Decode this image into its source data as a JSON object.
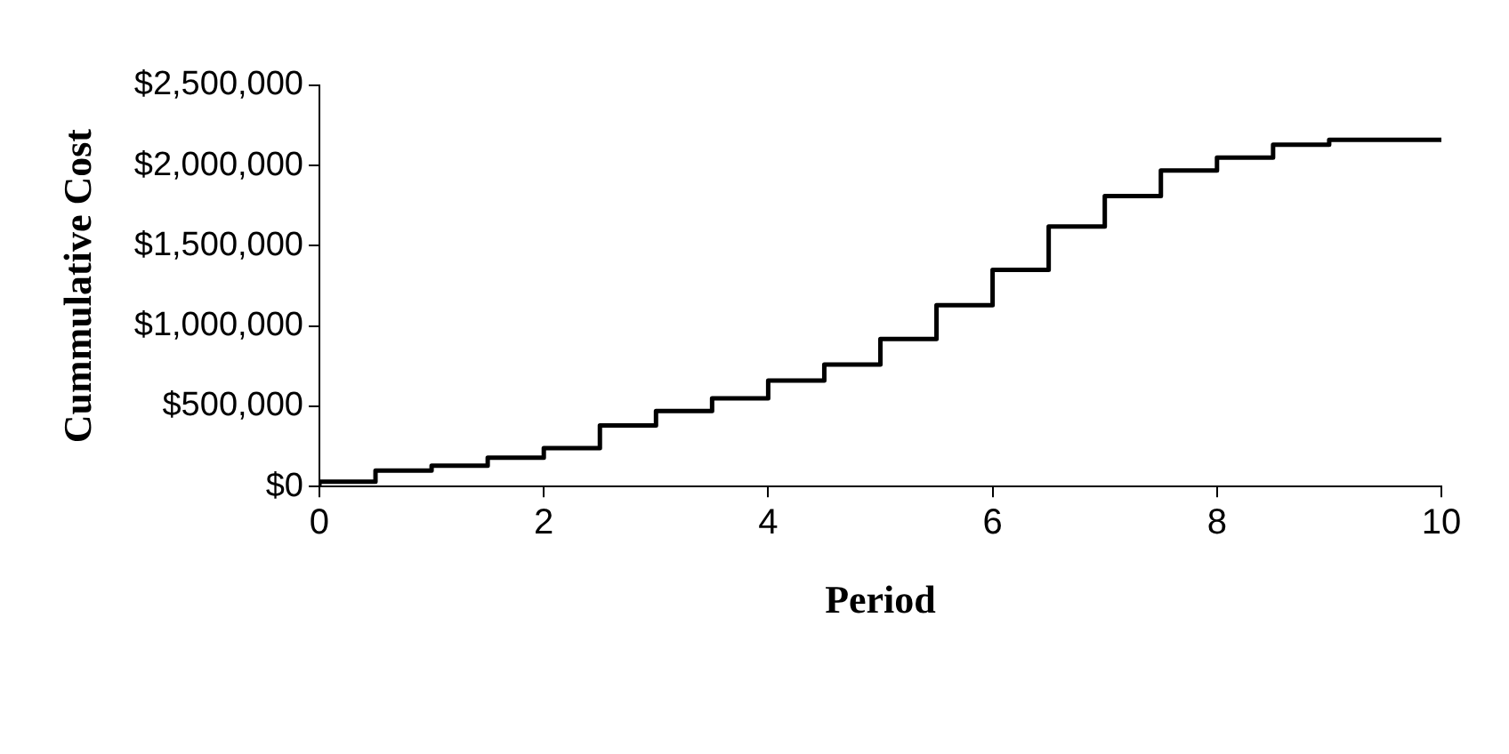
{
  "chart_data": {
    "type": "step",
    "xlabel": "Period",
    "ylabel": "Cummulative Cost",
    "x": [
      0,
      0.5,
      1,
      1.5,
      2,
      2.5,
      3,
      3.5,
      4,
      4.5,
      5,
      5.5,
      6,
      6.5,
      7,
      7.5,
      8,
      8.5,
      9,
      9.5,
      10
    ],
    "series": [
      {
        "color": "#000000",
        "values": [
          0,
          30000,
          100000,
          130000,
          180000,
          240000,
          380000,
          470000,
          550000,
          660000,
          760000,
          920000,
          1130000,
          1350000,
          1620000,
          1810000,
          1970000,
          2050000,
          2130000,
          2160000,
          2160000
        ]
      }
    ],
    "xlim": [
      0,
      10
    ],
    "xticks": [
      0,
      2,
      4,
      6,
      8,
      10
    ],
    "ylim": [
      0,
      2500000
    ],
    "yticks": [
      {
        "value": 0,
        "label": "$0"
      },
      {
        "value": 500000,
        "label": "$500,000"
      },
      {
        "value": 1000000,
        "label": "$1,000,000"
      },
      {
        "value": 1500000,
        "label": "$1,500,000"
      },
      {
        "value": 2000000,
        "label": "$2,000,000"
      },
      {
        "value": 2500000,
        "label": "$2,500,000"
      }
    ],
    "grid": false,
    "legend": false,
    "marker": "none",
    "line_style": "solid"
  }
}
